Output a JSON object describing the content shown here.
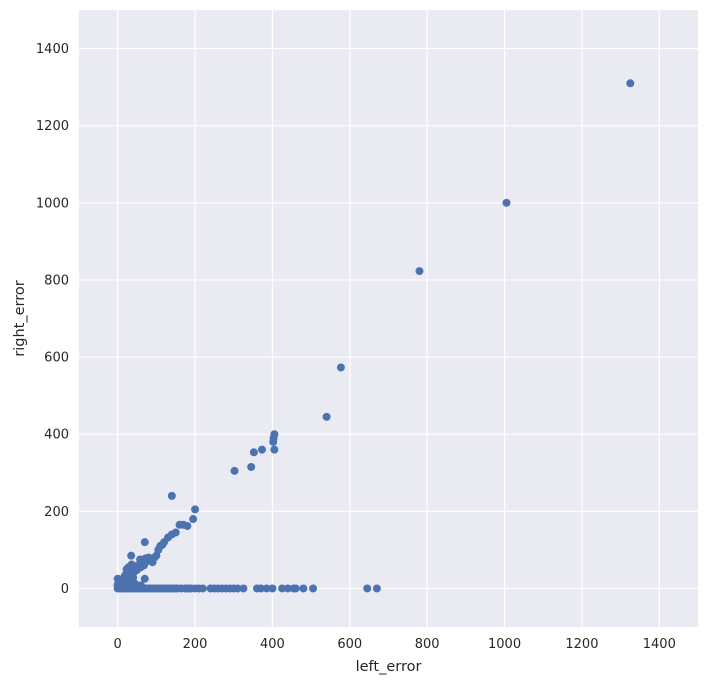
{
  "chart_data": {
    "type": "scatter",
    "title": "",
    "xlabel": "left_error",
    "ylabel": "right_error",
    "xlim": [
      -100,
      1500
    ],
    "ylim": [
      -100,
      1500
    ],
    "xticks": [
      0,
      200,
      400,
      600,
      800,
      1000,
      1200,
      1400
    ],
    "yticks": [
      0,
      200,
      400,
      600,
      800,
      1000,
      1200,
      1400
    ],
    "xtick_labels": [
      "0",
      "200",
      "400",
      "600",
      "800",
      "1000",
      "1200",
      "1400"
    ],
    "ytick_labels": [
      "0",
      "200",
      "400",
      "600",
      "800",
      "1000",
      "1200",
      "1400"
    ],
    "grid": true,
    "colors": {
      "background": "#eaeaf2",
      "grid": "#ffffff",
      "marker": "#4c72b0"
    },
    "points": [
      [
        1325,
        1310
      ],
      [
        1005,
        1000
      ],
      [
        780,
        823
      ],
      [
        577,
        573
      ],
      [
        540,
        445
      ],
      [
        405,
        400
      ],
      [
        403,
        390
      ],
      [
        402,
        380
      ],
      [
        405,
        360
      ],
      [
        373,
        360
      ],
      [
        352,
        353
      ],
      [
        345,
        315
      ],
      [
        302,
        305
      ],
      [
        200,
        205
      ],
      [
        195,
        180
      ],
      [
        180,
        162
      ],
      [
        170,
        165
      ],
      [
        160,
        165
      ],
      [
        150,
        145
      ],
      [
        140,
        240
      ],
      [
        140,
        140
      ],
      [
        130,
        132
      ],
      [
        120,
        120
      ],
      [
        115,
        113
      ],
      [
        110,
        110
      ],
      [
        105,
        100
      ],
      [
        100,
        85
      ],
      [
        95,
        80
      ],
      [
        90,
        68
      ],
      [
        88,
        72
      ],
      [
        80,
        80
      ],
      [
        75,
        70
      ],
      [
        72,
        78
      ],
      [
        70,
        120
      ],
      [
        68,
        60
      ],
      [
        65,
        65
      ],
      [
        60,
        55
      ],
      [
        58,
        75
      ],
      [
        55,
        60
      ],
      [
        50,
        48
      ],
      [
        48,
        58
      ],
      [
        45,
        45
      ],
      [
        42,
        50
      ],
      [
        40,
        40
      ],
      [
        38,
        35
      ],
      [
        36,
        62
      ],
      [
        35,
        85
      ],
      [
        33,
        30
      ],
      [
        30,
        28
      ],
      [
        28,
        55
      ],
      [
        27,
        25
      ],
      [
        25,
        22
      ],
      [
        24,
        40
      ],
      [
        23,
        50
      ],
      [
        22,
        20
      ],
      [
        20,
        18
      ],
      [
        20,
        35
      ],
      [
        18,
        16
      ],
      [
        17,
        30
      ],
      [
        15,
        14
      ],
      [
        14,
        25
      ],
      [
        12,
        12
      ],
      [
        11,
        20
      ],
      [
        10,
        10
      ],
      [
        8,
        8
      ],
      [
        7,
        15
      ],
      [
        6,
        5
      ],
      [
        5,
        22
      ],
      [
        4,
        4
      ],
      [
        3,
        3
      ],
      [
        2,
        12
      ],
      [
        1,
        1
      ],
      [
        0,
        25
      ],
      [
        0,
        10
      ],
      [
        0,
        5
      ],
      [
        25,
        8
      ],
      [
        35,
        10
      ],
      [
        45,
        12
      ],
      [
        50,
        5
      ],
      [
        60,
        8
      ],
      [
        70,
        25
      ],
      [
        40,
        28
      ],
      [
        30,
        12
      ],
      [
        20,
        5
      ],
      [
        12,
        3
      ],
      [
        0,
        0
      ],
      [
        5,
        0
      ],
      [
        10,
        0
      ],
      [
        15,
        0
      ],
      [
        20,
        0
      ],
      [
        25,
        0
      ],
      [
        30,
        0
      ],
      [
        35,
        0
      ],
      [
        40,
        0
      ],
      [
        45,
        0
      ],
      [
        50,
        0
      ],
      [
        55,
        0
      ],
      [
        60,
        0
      ],
      [
        65,
        0
      ],
      [
        70,
        0
      ],
      [
        75,
        0
      ],
      [
        80,
        0
      ],
      [
        85,
        0
      ],
      [
        90,
        0
      ],
      [
        95,
        0
      ],
      [
        100,
        0
      ],
      [
        105,
        0
      ],
      [
        110,
        0
      ],
      [
        115,
        0
      ],
      [
        120,
        0
      ],
      [
        125,
        0
      ],
      [
        130,
        0
      ],
      [
        135,
        0
      ],
      [
        140,
        0
      ],
      [
        145,
        0
      ],
      [
        150,
        0
      ],
      [
        155,
        0
      ],
      [
        165,
        0
      ],
      [
        175,
        0
      ],
      [
        180,
        0
      ],
      [
        185,
        0
      ],
      [
        190,
        0
      ],
      [
        200,
        0
      ],
      [
        210,
        0
      ],
      [
        220,
        0
      ],
      [
        240,
        0
      ],
      [
        250,
        0
      ],
      [
        260,
        0
      ],
      [
        270,
        0
      ],
      [
        280,
        0
      ],
      [
        290,
        0
      ],
      [
        300,
        0
      ],
      [
        310,
        0
      ],
      [
        325,
        0
      ],
      [
        360,
        0
      ],
      [
        370,
        0
      ],
      [
        385,
        0
      ],
      [
        400,
        0
      ],
      [
        425,
        0
      ],
      [
        440,
        0
      ],
      [
        455,
        0
      ],
      [
        460,
        0
      ],
      [
        480,
        0
      ],
      [
        505,
        0
      ],
      [
        645,
        0
      ],
      [
        670,
        0
      ]
    ]
  }
}
